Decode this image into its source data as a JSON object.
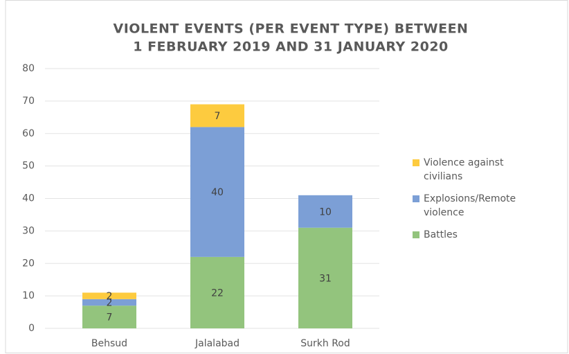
{
  "chart_data": {
    "type": "stacked_bar",
    "title": [
      "VIOLENT EVENTS (PER EVENT TYPE) BETWEEN",
      "1 FEBRUARY 2019 AND 31 JANUARY 2020"
    ],
    "categories": [
      "Behsud",
      "Jalalabad",
      "Surkh Rod"
    ],
    "series": [
      {
        "name": "Battles",
        "color": "#93c47d",
        "values": [
          7,
          22,
          31
        ]
      },
      {
        "name": "Explosions/Remote violence",
        "color": "#7c9fd6",
        "values": [
          2,
          40,
          10
        ]
      },
      {
        "name": "Violence against civilians",
        "color": "#fdcb3f",
        "values": [
          2,
          7,
          null
        ]
      }
    ],
    "ylim": [
      0,
      80
    ],
    "yticks": [
      0,
      10,
      20,
      30,
      40,
      50,
      60,
      70,
      80
    ],
    "grid": true,
    "legend": "right"
  }
}
